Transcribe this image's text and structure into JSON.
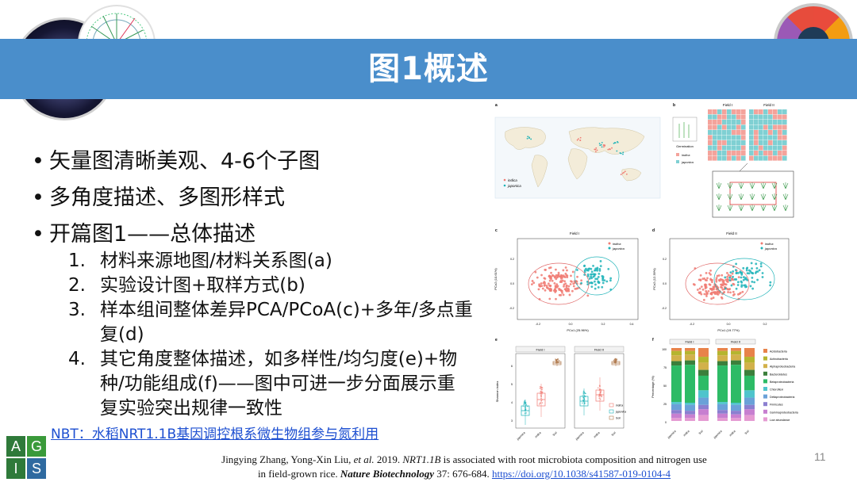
{
  "slide": {
    "title": "图1概述",
    "bullets": [
      "矢量图清晰美观、4-6个子图",
      "多角度描述、多图形样式",
      "开篇图1——总体描述"
    ],
    "subitems": [
      {
        "num": "1.",
        "text": "材料来源地图/材料关系图(a)"
      },
      {
        "num": "2.",
        "text": "实验设计图+取样方式(b)"
      },
      {
        "num": "3.",
        "text": "样本组间整体差异PCA/PCoA(c)+多年/多点重复(d)"
      },
      {
        "num": "4.",
        "text": "其它角度整体描述，如多样性/均匀度(e)+物种/功能组成(f)——图中可进一步分面展示重复实验突出规律一致性"
      }
    ],
    "nbt_link": "NBT：水稻NRT1.1B基因调控根系微生物组参与氮利用",
    "page_number": "11",
    "logo_letters": [
      "A",
      "G",
      "I",
      "S"
    ]
  },
  "citation": {
    "authors": "Jingying Zhang, Yong-Xin Liu,",
    "etal": "et al.",
    "year": "2019.",
    "gene": "NRT1.1B",
    "title_rest": "is associated with root microbiota composition and nitrogen use",
    "line2": "in field-grown rice.",
    "journal": "Nature Biotechnology",
    "volume": "37: 676-684.",
    "doi": "https://doi.org/10.1038/s41587-019-0104-4"
  },
  "figure": {
    "panel_labels": [
      "a",
      "b",
      "c",
      "d",
      "e",
      "f"
    ],
    "map_legend": [
      "indica",
      "japonica"
    ],
    "b_fields": [
      "Field I",
      "Field II"
    ],
    "b_legend_title": "Germination",
    "b_legend": [
      "indica",
      "japonica"
    ],
    "c_title": "Field I",
    "c_xlabel": "PCo1 (25.96%)",
    "c_ylabel": "PCo2 (10.61%)",
    "d_title": "Field II",
    "d_xlabel": "PCo1 (19.77%)",
    "d_ylabel": "PCo2 (12.39%)",
    "c_xticks": [
      "-0.2",
      "0.0",
      "0.2",
      "0.4"
    ],
    "d_xticks": [
      "-0.2",
      "0.0",
      "0.2"
    ],
    "yticks": [
      "0.2",
      "0.0",
      "-0.2"
    ],
    "pcoa_legend": [
      "indica",
      "japonica"
    ],
    "e_fields": [
      "Field I",
      "Field II"
    ],
    "e_ylabel": "Shannon index",
    "e_yticks": [
      "6",
      "5",
      "4",
      "3"
    ],
    "e_xticks": [
      "japonica",
      "indica",
      "Soil",
      "japonica",
      "indica",
      "Soil"
    ],
    "e_legend": [
      "indica",
      "japonica",
      "Soil"
    ],
    "f_fields": [
      "Field I",
      "Field II"
    ],
    "f_ylabel": "Percentage (%)",
    "f_yticks": [
      "100",
      "75",
      "50",
      "25",
      "0"
    ],
    "f_xticks": [
      "japonica",
      "indica",
      "Soil",
      "japonica",
      "indica",
      "Soil"
    ],
    "f_legend": [
      "Acidobacteria",
      "Actinobacteria",
      "Alphaproteobacteria",
      "Bacteroidetes",
      "Betaproteobacteria",
      "Chloroflexi",
      "Deltaproteobacteria",
      "Firmicutes",
      "Gammaproteobacteria",
      "Low abundance"
    ],
    "colors": {
      "indica": "#f07a72",
      "japonica": "#1fb3b8",
      "soil": "#b07b4f",
      "accent": "#4a8ecb"
    }
  }
}
